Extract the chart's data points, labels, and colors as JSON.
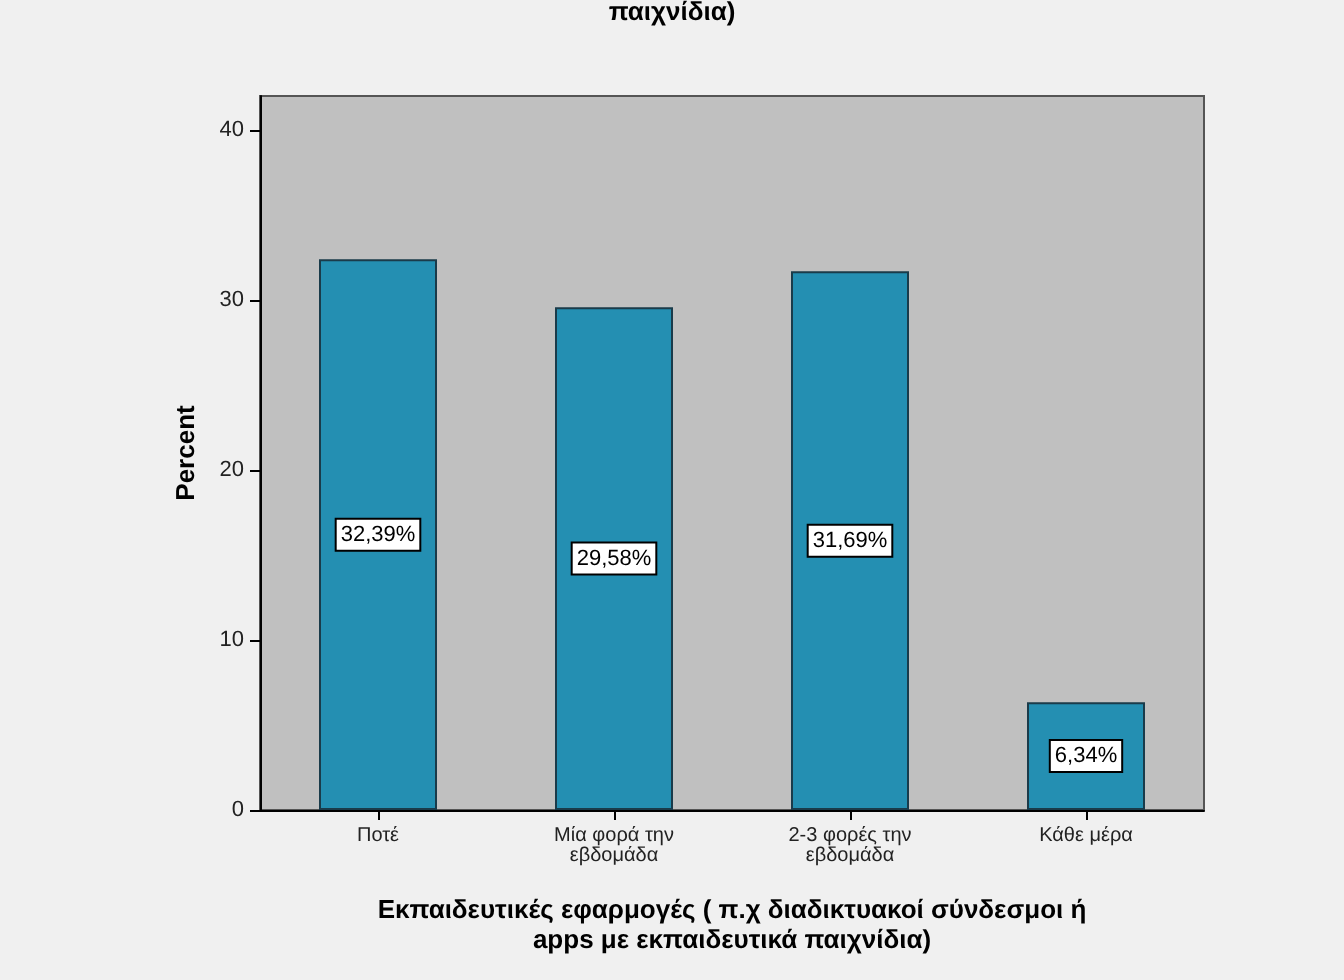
{
  "chart_data": {
    "type": "bar",
    "title": "παιχνίδια)",
    "xlabel": "Εκπαιδευτικές εφαρμογές ( π.χ διαδικτυακοί σύνδεσμοι ή\napps με εκπαιδευτικά παιχνίδια)",
    "ylabel": "Percent",
    "categories": [
      "Ποτέ",
      "Μία φορά την\nεβδομάδα",
      "2-3 φορές την\nεβδομάδα",
      "Κάθε μέρα"
    ],
    "values": [
      32.39,
      29.58,
      31.69,
      6.34
    ],
    "value_labels": [
      "32,39%",
      "29,58%",
      "31,69%",
      "6,34%"
    ],
    "color": "#248fb2",
    "ylim": [
      0,
      42
    ],
    "yticks": [
      0,
      10,
      20,
      30,
      40
    ],
    "grid": false
  }
}
